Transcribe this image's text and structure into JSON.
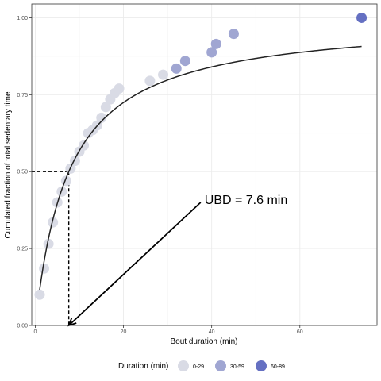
{
  "chart_data": {
    "type": "scatter",
    "title": "",
    "xlabel": "Bout duration (min)",
    "ylabel": "Cumulated fraction of total sedentary time",
    "xlim": [
      -0.8,
      77.5
    ],
    "ylim": [
      0,
      1.045
    ],
    "x_ticks": [
      0,
      20,
      40,
      60
    ],
    "x_tick_labels": [
      "0",
      "20",
      "40",
      "60"
    ],
    "y_ticks": [
      0,
      0.25,
      0.5,
      0.75,
      1.0
    ],
    "y_tick_labels": [
      "0.00",
      "0.25",
      "0.50",
      "0.75",
      "1.00"
    ],
    "grid": true,
    "legend": {
      "title": "Duration (min)",
      "position": "bottom",
      "entries": [
        {
          "label": "0-29",
          "color": "#d9dbe5"
        },
        {
          "label": "30-59",
          "color": "#a0a6d2"
        },
        {
          "label": "60-89",
          "color": "#6570c2"
        }
      ]
    },
    "points": [
      {
        "x": 1,
        "y": 0.1,
        "group": "0-29"
      },
      {
        "x": 2,
        "y": 0.185,
        "group": "0-29"
      },
      {
        "x": 3,
        "y": 0.265,
        "group": "0-29"
      },
      {
        "x": 4,
        "y": 0.335,
        "group": "0-29"
      },
      {
        "x": 5,
        "y": 0.4,
        "group": "0-29"
      },
      {
        "x": 6,
        "y": 0.435,
        "group": "0-29"
      },
      {
        "x": 7,
        "y": 0.47,
        "group": "0-29"
      },
      {
        "x": 8,
        "y": 0.51,
        "group": "0-29"
      },
      {
        "x": 9,
        "y": 0.535,
        "group": "0-29"
      },
      {
        "x": 10,
        "y": 0.565,
        "group": "0-29"
      },
      {
        "x": 11,
        "y": 0.585,
        "group": "0-29"
      },
      {
        "x": 12,
        "y": 0.625,
        "group": "0-29"
      },
      {
        "x": 13,
        "y": 0.635,
        "group": "0-29"
      },
      {
        "x": 14,
        "y": 0.65,
        "group": "0-29"
      },
      {
        "x": 15,
        "y": 0.675,
        "group": "0-29"
      },
      {
        "x": 16,
        "y": 0.71,
        "group": "0-29"
      },
      {
        "x": 17,
        "y": 0.735,
        "group": "0-29"
      },
      {
        "x": 18,
        "y": 0.755,
        "group": "0-29"
      },
      {
        "x": 19,
        "y": 0.77,
        "group": "0-29"
      },
      {
        "x": 26,
        "y": 0.795,
        "group": "0-29"
      },
      {
        "x": 29,
        "y": 0.815,
        "group": "0-29"
      },
      {
        "x": 32,
        "y": 0.835,
        "group": "30-59"
      },
      {
        "x": 34,
        "y": 0.86,
        "group": "30-59"
      },
      {
        "x": 40,
        "y": 0.888,
        "group": "30-59"
      },
      {
        "x": 41,
        "y": 0.915,
        "group": "30-59"
      },
      {
        "x": 45,
        "y": 0.948,
        "group": "30-59"
      },
      {
        "x": 74,
        "y": 1.0,
        "group": "60-89"
      }
    ],
    "fit_curve": {
      "form": "x/(x+UBD)",
      "ubd": 7.6,
      "x_range": [
        1,
        74
      ]
    },
    "reference_value": {
      "x": 7.6,
      "y": 0.5
    },
    "annotation": {
      "text": "UBD = 7.6 min",
      "x": 37.5,
      "y": 0.4
    }
  }
}
